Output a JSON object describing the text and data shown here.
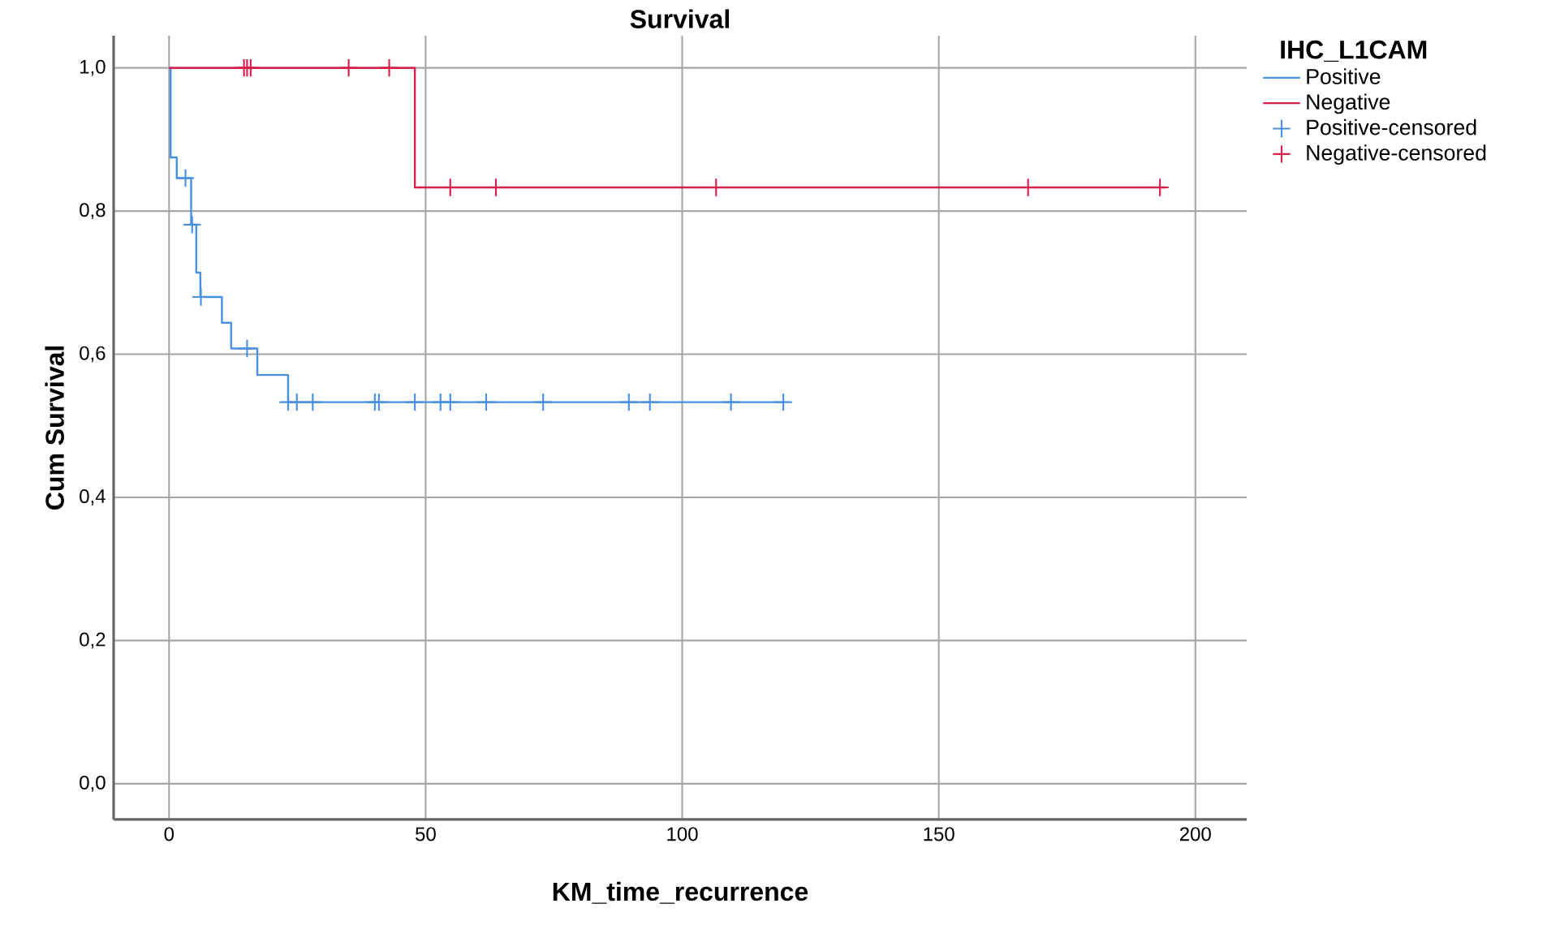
{
  "chart_data": {
    "type": "step",
    "title": "Survival",
    "xlabel": "KM_time_recurrence",
    "ylabel": "Cum Survival",
    "legend_title": "IHC_L1CAM",
    "series": [
      {
        "name": "Positive",
        "color": "#4a90e2",
        "x": [
          0,
          0.3,
          1.5,
          4.3,
          5.3,
          6.1,
          10.3,
          12.1,
          17.2,
          23.2,
          120
        ],
        "values": [
          1,
          0.875,
          0.846,
          0.781,
          0.714,
          0.68,
          0.644,
          0.608,
          0.571,
          0.533,
          0.533
        ]
      },
      {
        "name": "Negative",
        "color": "#d81e4a",
        "x": [
          0,
          47.9,
          194.2
        ],
        "values": [
          1,
          0.833,
          0.833
        ]
      },
      {
        "name": "Positive-censored",
        "type": "scatter",
        "marker": "cross",
        "color": "#4a90e2",
        "x": [
          3.2,
          4.5,
          6.2,
          15.2,
          23.2,
          24.9,
          28.0,
          40.1,
          40.9,
          47.9,
          52.9,
          54.8,
          61.8,
          72.9,
          89.6,
          93.7,
          109.5,
          119.7
        ],
        "values": [
          0.846,
          0.781,
          0.68,
          0.608,
          0.533,
          0.533,
          0.533,
          0.533,
          0.533,
          0.533,
          0.533,
          0.533,
          0.533,
          0.533,
          0.533,
          0.533,
          0.533,
          0.533
        ]
      },
      {
        "name": "Negative-censored",
        "type": "scatter",
        "marker": "cross",
        "color": "#d81e4a",
        "x": [
          14.6,
          15.2,
          15.9,
          35.0,
          42.9,
          54.8,
          63.7,
          106.6,
          167.4,
          193.1
        ],
        "values": [
          1,
          1,
          1,
          1,
          1,
          0.833,
          0.833,
          0.833,
          0.833,
          0.833
        ]
      }
    ],
    "xlim": [
      -10.8,
      210
    ],
    "ylim": [
      -0.05,
      1.045
    ],
    "xticks": [
      0,
      50,
      100,
      150,
      200
    ],
    "yticks": [
      {
        "value": 0,
        "label": "0,0"
      },
      {
        "value": 0.2,
        "label": "0,2"
      },
      {
        "value": 0.4,
        "label": "0,4"
      },
      {
        "value": 0.6,
        "label": "0,6"
      },
      {
        "value": 0.8,
        "label": "0,8"
      },
      {
        "value": 1.0,
        "label": "1,0"
      }
    ],
    "grid": true,
    "legend": "top right"
  }
}
